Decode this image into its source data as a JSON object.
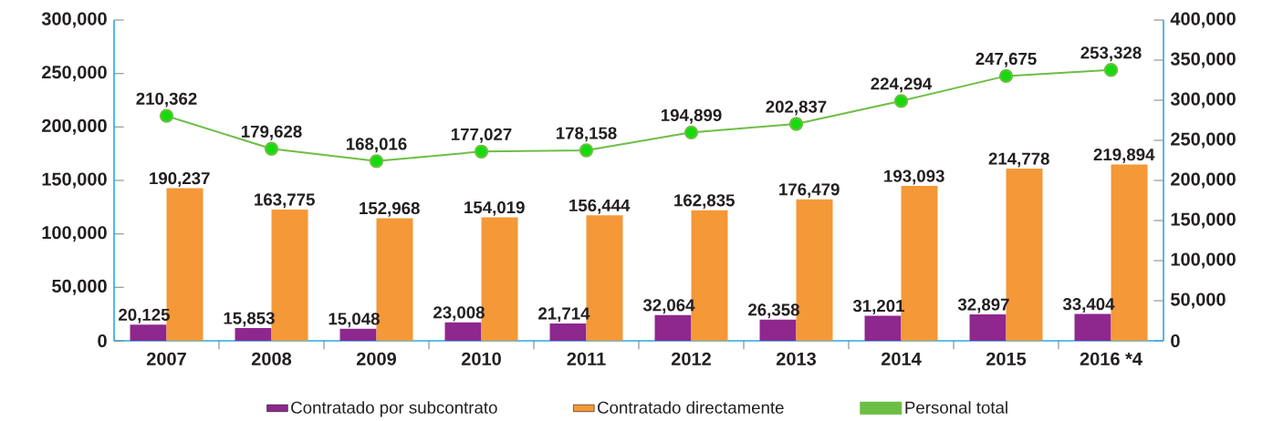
{
  "chart_data": {
    "type": "bar",
    "categories": [
      "2007",
      "2008",
      "2009",
      "2010",
      "2011",
      "2012",
      "2013",
      "2014",
      "2015",
      "2016 *4"
    ],
    "series": [
      {
        "name": "Contratado por subcontrato",
        "color": "#8e278e",
        "axis": "y2",
        "values": [
          20125,
          15853,
          15048,
          23008,
          21714,
          32064,
          26358,
          31201,
          32897,
          33404
        ],
        "value_labels": [
          "20,125",
          "15,853",
          "15,048",
          "23,008",
          "21,714",
          "32,064",
          "26,358",
          "31,201",
          "32,897",
          "33,404"
        ]
      },
      {
        "name": "Contratado directamente",
        "color": "#f49838",
        "axis": "y2",
        "values": [
          190237,
          163775,
          152968,
          154019,
          156444,
          162835,
          176479,
          193093,
          214778,
          219894
        ],
        "value_labels": [
          "190,237",
          "163,775",
          "152,968",
          "154,019",
          "156,444",
          "162,835",
          "176,479",
          "193,093",
          "214,778",
          "219,894"
        ]
      },
      {
        "name": "Personal total",
        "type": "line",
        "color": "#6dbe45",
        "marker": "circle",
        "values": [
          210362,
          179628,
          168016,
          177027,
          178158,
          194899,
          202837,
          224294,
          247675,
          253328
        ],
        "value_labels": [
          "210,362",
          "179,628",
          "168,016",
          "177,027",
          "178,158",
          "194,899",
          "202,837",
          "224,294",
          "247,675",
          "253,328"
        ]
      }
    ],
    "ylim": [
      0,
      300000
    ],
    "yticks": [
      {
        "value": 0,
        "label": "0"
      },
      {
        "value": 50000,
        "label": "50,000"
      },
      {
        "value": 100000,
        "label": "100,000"
      },
      {
        "value": 150000,
        "label": "150,000"
      },
      {
        "value": 200000,
        "label": "200,000"
      },
      {
        "value": 250000,
        "label": "250,000"
      },
      {
        "value": 300000,
        "label": "300,000"
      }
    ],
    "y2lim": [
      0,
      400000
    ],
    "y2ticks": [
      {
        "value": 0,
        "label": "0"
      },
      {
        "value": 50000,
        "label": "50,000"
      },
      {
        "value": 100000,
        "label": "100,000"
      },
      {
        "value": 150000,
        "label": "150,000"
      },
      {
        "value": 200000,
        "label": "200,000"
      },
      {
        "value": 250000,
        "label": "250,000"
      },
      {
        "value": 300000,
        "label": "300,000"
      },
      {
        "value": 350000,
        "label": "350,000"
      },
      {
        "value": 400000,
        "label": "400,000"
      }
    ],
    "legend": "bottom",
    "grid": false
  }
}
